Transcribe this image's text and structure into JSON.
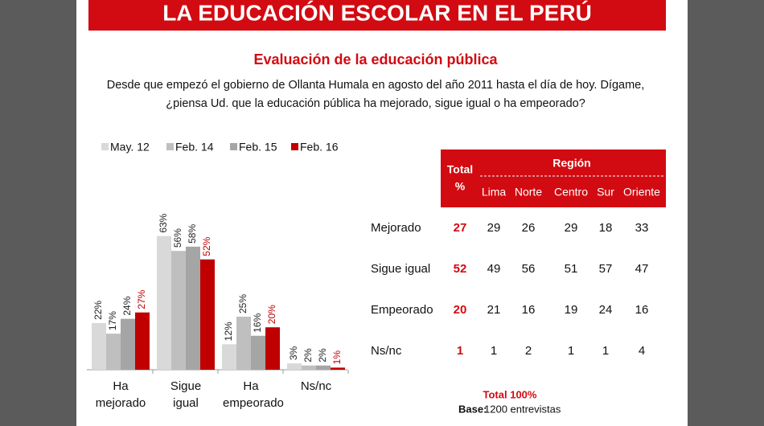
{
  "header": {
    "title": "LA EDUCACIÓN ESCOLAR EN EL PERÚ"
  },
  "chart_data": {
    "type": "bar",
    "subtitle": "Evaluación de la educación pública",
    "question": [
      "Desde que empezó el gobierno de Ollanta Humala en agosto del año 2011 hasta el día de hoy.  Dígame,",
      "¿piensa Ud. que la educación pública ha mejorado, sigue igual o ha empeorado?"
    ],
    "categories": [
      "Ha mejorado",
      "Sigue igual",
      "Ha empeorado",
      "Ns/nc"
    ],
    "series": [
      {
        "name": "May. 12",
        "color": "#d9d9d9",
        "values": [
          22,
          63,
          12,
          3
        ],
        "value_labels": [
          "22%",
          "63%",
          "12%",
          "3%"
        ]
      },
      {
        "name": "Feb. 14",
        "color": "#bfbfbf",
        "values": [
          17,
          56,
          25,
          2
        ],
        "value_labels": [
          "17%",
          "56%",
          "25%",
          "2%"
        ]
      },
      {
        "name": "Feb. 15",
        "color": "#a5a5a5",
        "values": [
          24,
          58,
          16,
          2
        ],
        "value_labels": [
          "24%",
          "58%",
          "16%",
          "2%"
        ]
      },
      {
        "name": "Feb. 16",
        "color": "#c00000",
        "values": [
          27,
          52,
          20,
          1
        ],
        "value_labels": [
          "27%",
          "52%",
          "20%",
          "1%"
        ]
      }
    ]
  },
  "table": {
    "total_header": [
      "Total",
      "%"
    ],
    "region_header": "Región",
    "regions": [
      "Lima",
      "Norte",
      "Centro",
      "Sur",
      "Oriente"
    ],
    "rows": [
      {
        "label": "Mejorado",
        "total": 27,
        "values": [
          29,
          26,
          29,
          18,
          33
        ]
      },
      {
        "label": "Sigue igual",
        "total": 52,
        "values": [
          49,
          56,
          51,
          57,
          47
        ]
      },
      {
        "label": "Empeorado",
        "total": 20,
        "values": [
          21,
          16,
          19,
          24,
          16
        ]
      },
      {
        "label": "Ns/nc",
        "total": 1,
        "values": [
          1,
          2,
          1,
          1,
          4
        ]
      }
    ],
    "total_note": "Total 100%",
    "base_label": "Base:",
    "base_value": "1200 entrevistas"
  }
}
